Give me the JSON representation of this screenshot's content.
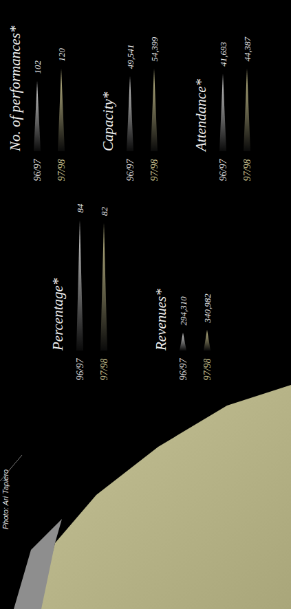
{
  "photo_credit": "Photo: Ari Tapiero",
  "chart_data": [
    {
      "type": "bar",
      "title": "Percentage*",
      "orientation": "horizontal",
      "categories": [
        "96/97",
        "97/98"
      ],
      "values": [
        84,
        82
      ],
      "colors": [
        "#d9d9d9",
        "#c9c28e"
      ],
      "data_labels": true,
      "tick_labels": "y"
    },
    {
      "type": "bar",
      "title": "Revenues*",
      "orientation": "horizontal",
      "categories": [
        "96/97",
        "97/98"
      ],
      "values": [
        294310,
        340982
      ],
      "value_labels": [
        "294,310",
        "340,982"
      ],
      "colors": [
        "#d9d9d9",
        "#c9c28e"
      ],
      "data_labels": true,
      "tick_labels": "y"
    },
    {
      "type": "bar",
      "title": "No. of performances*",
      "orientation": "horizontal",
      "categories": [
        "96/97",
        "97/98"
      ],
      "values": [
        102,
        120
      ],
      "colors": [
        "#d9d9d9",
        "#c9c28e"
      ],
      "data_labels": true,
      "tick_labels": "y"
    },
    {
      "type": "bar",
      "title": "Capacity*",
      "orientation": "horizontal",
      "categories": [
        "96/97",
        "97/98"
      ],
      "values": [
        49541,
        54399
      ],
      "value_labels": [
        "49,541",
        "54,399"
      ],
      "colors": [
        "#d9d9d9",
        "#c9c28e"
      ],
      "data_labels": true,
      "tick_labels": "y"
    },
    {
      "type": "bar",
      "title": "Attendance*",
      "orientation": "horizontal",
      "categories": [
        "96/97",
        "97/98"
      ],
      "values": [
        41693,
        44387
      ],
      "value_labels": [
        "41,693",
        "44,387"
      ],
      "colors": [
        "#d9d9d9",
        "#c9c28e"
      ],
      "data_labels": true,
      "tick_labels": "y"
    }
  ]
}
